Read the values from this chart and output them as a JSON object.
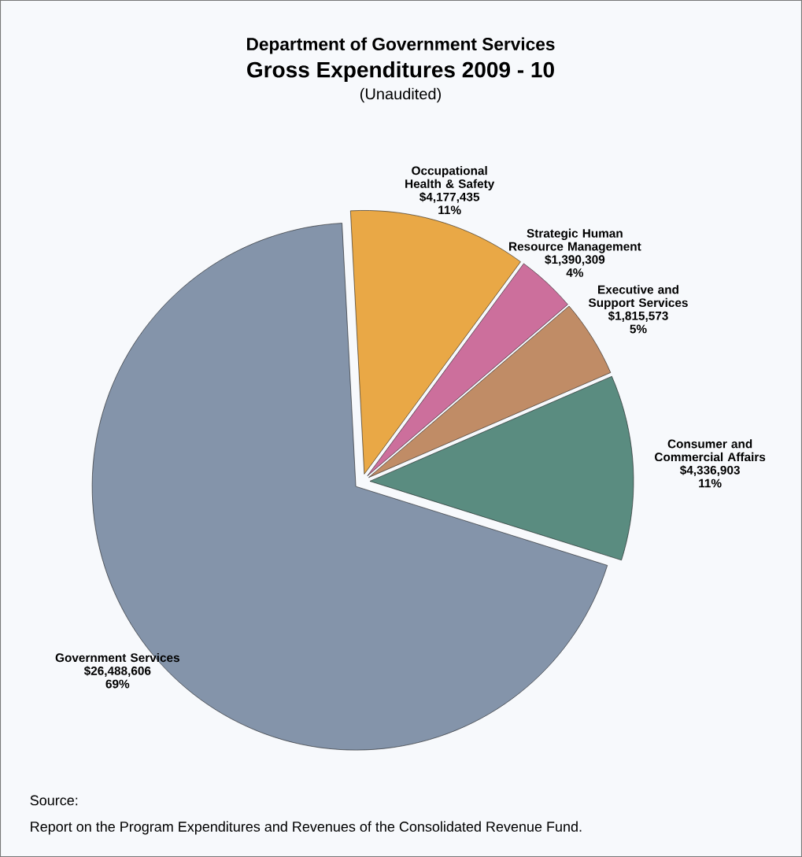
{
  "chart_data": {
    "type": "pie",
    "title": "Department of Government Services",
    "subtitle": "Gross Expenditures 2009 - 10",
    "categories": [
      "Occupational Health & Safety",
      "Strategic Human Resource Management",
      "Executive and Support Services",
      "Consumer and Commercial Affairs",
      "Government Services"
    ],
    "values": [
      4177435,
      1390309,
      1815573,
      4336903,
      26488606
    ],
    "value_labels": [
      "$4,177,435",
      "$1,390,309",
      "$1,815,573",
      "$4,336,903",
      "$26,488,606"
    ],
    "colors": [
      "#e9a846",
      "#cc6f9c",
      "#c08c66",
      "#5a8c80",
      "#8494aa"
    ],
    "annotations": [
      "(Unaudited)",
      "11%",
      "4%",
      "5%",
      "11%",
      "69%",
      "Source:",
      "Report on the Program Expenditures and Revenues of the Consolidated Revenue Fund."
    ],
    "legend": false
  }
}
